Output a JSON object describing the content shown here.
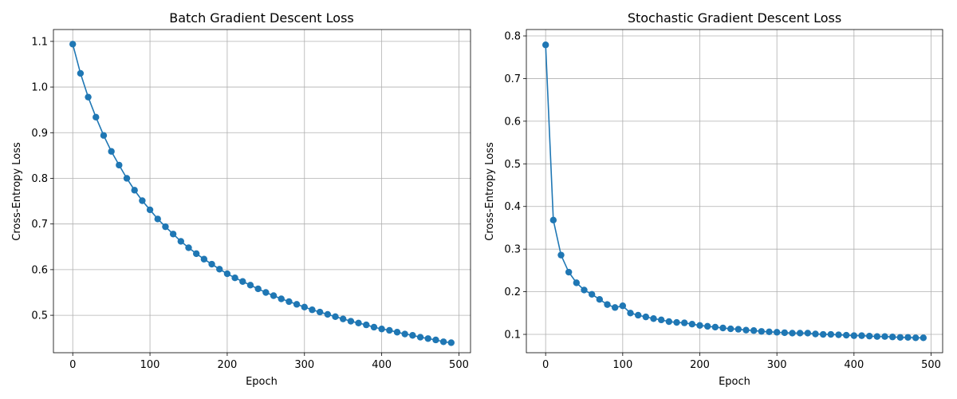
{
  "chart_data": [
    {
      "type": "line",
      "title": "Batch Gradient Descent Loss",
      "xlabel": "Epoch",
      "ylabel": "Cross-Entropy Loss",
      "xlim": [
        -25,
        515
      ],
      "ylim": [
        0.418,
        1.126
      ],
      "xticks": [
        0,
        100,
        200,
        300,
        400,
        500
      ],
      "xtick_labels": [
        "0",
        "100",
        "200",
        "300",
        "400",
        "500"
      ],
      "yticks": [
        0.5,
        0.6,
        0.7,
        0.8,
        0.9,
        1.0,
        1.1
      ],
      "ytick_labels": [
        "0.5",
        "0.6",
        "0.7",
        "0.8",
        "0.9",
        "1.0",
        "1.1"
      ],
      "grid": true,
      "marker": "circle",
      "series": [
        {
          "color": "#1f77b4",
          "x": [
            0,
            10,
            20,
            30,
            40,
            50,
            60,
            70,
            80,
            90,
            100,
            110,
            120,
            130,
            140,
            150,
            160,
            170,
            180,
            190,
            200,
            210,
            220,
            230,
            240,
            250,
            260,
            270,
            280,
            290,
            300,
            310,
            320,
            330,
            340,
            350,
            360,
            370,
            380,
            390,
            400,
            410,
            420,
            430,
            440,
            450,
            460,
            470,
            480,
            490
          ],
          "y": [
            1.094,
            1.03,
            0.978,
            0.934,
            0.894,
            0.859,
            0.829,
            0.8,
            0.774,
            0.751,
            0.731,
            0.711,
            0.694,
            0.678,
            0.662,
            0.648,
            0.635,
            0.623,
            0.612,
            0.601,
            0.591,
            0.582,
            0.574,
            0.566,
            0.558,
            0.55,
            0.543,
            0.536,
            0.53,
            0.524,
            0.518,
            0.512,
            0.507,
            0.502,
            0.497,
            0.492,
            0.487,
            0.483,
            0.479,
            0.474,
            0.47,
            0.467,
            0.463,
            0.459,
            0.456,
            0.452,
            0.449,
            0.446,
            0.442,
            0.44
          ]
        }
      ]
    },
    {
      "type": "line",
      "title": "Stochastic Gradient Descent Loss",
      "xlabel": "Epoch",
      "ylabel": "Cross-Entropy Loss",
      "xlim": [
        -25,
        515
      ],
      "ylim": [
        0.057,
        0.815
      ],
      "xticks": [
        0,
        100,
        200,
        300,
        400,
        500
      ],
      "xtick_labels": [
        "0",
        "100",
        "200",
        "300",
        "400",
        "500"
      ],
      "yticks": [
        0.1,
        0.2,
        0.3,
        0.4,
        0.5,
        0.6,
        0.7,
        0.8
      ],
      "ytick_labels": [
        "0.1",
        "0.2",
        "0.3",
        "0.4",
        "0.5",
        "0.6",
        "0.7",
        "0.8"
      ],
      "grid": true,
      "marker": "circle",
      "series": [
        {
          "color": "#1f77b4",
          "x": [
            0,
            10,
            20,
            30,
            40,
            50,
            60,
            70,
            80,
            90,
            100,
            110,
            120,
            130,
            140,
            150,
            160,
            170,
            180,
            190,
            200,
            210,
            220,
            230,
            240,
            250,
            260,
            270,
            280,
            290,
            300,
            310,
            320,
            330,
            340,
            350,
            360,
            370,
            380,
            390,
            400,
            410,
            420,
            430,
            440,
            450,
            460,
            470,
            480,
            490
          ],
          "y": [
            0.779,
            0.368,
            0.286,
            0.246,
            0.221,
            0.204,
            0.194,
            0.182,
            0.17,
            0.163,
            0.167,
            0.15,
            0.145,
            0.141,
            0.137,
            0.134,
            0.13,
            0.128,
            0.127,
            0.124,
            0.121,
            0.119,
            0.117,
            0.115,
            0.113,
            0.112,
            0.11,
            0.109,
            0.107,
            0.106,
            0.105,
            0.104,
            0.103,
            0.103,
            0.103,
            0.101,
            0.1,
            0.1,
            0.099,
            0.098,
            0.097,
            0.097,
            0.096,
            0.095,
            0.095,
            0.094,
            0.093,
            0.093,
            0.092,
            0.092
          ]
        }
      ]
    }
  ]
}
